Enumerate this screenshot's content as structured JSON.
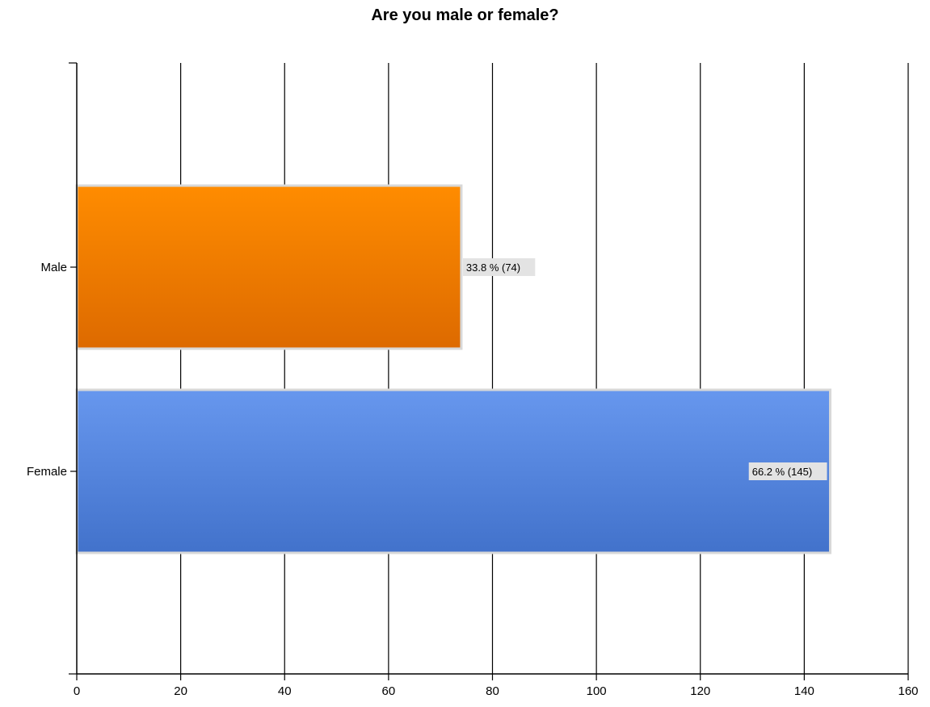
{
  "chart_data": {
    "type": "bar",
    "orientation": "horizontal",
    "title": "Are you male or female?",
    "xlabel": "",
    "ylabel": "",
    "categories": [
      "Male",
      "Female"
    ],
    "values": [
      74,
      145
    ],
    "data_labels": [
      "33.8 % (74)",
      "66.2 % (145)"
    ],
    "colors": [
      "#f08800",
      "#5b8ee6"
    ],
    "xlim": [
      0,
      160
    ],
    "x_ticks": [
      0,
      20,
      40,
      60,
      80,
      100,
      120,
      140,
      160
    ],
    "grid": true,
    "legend": "none"
  }
}
